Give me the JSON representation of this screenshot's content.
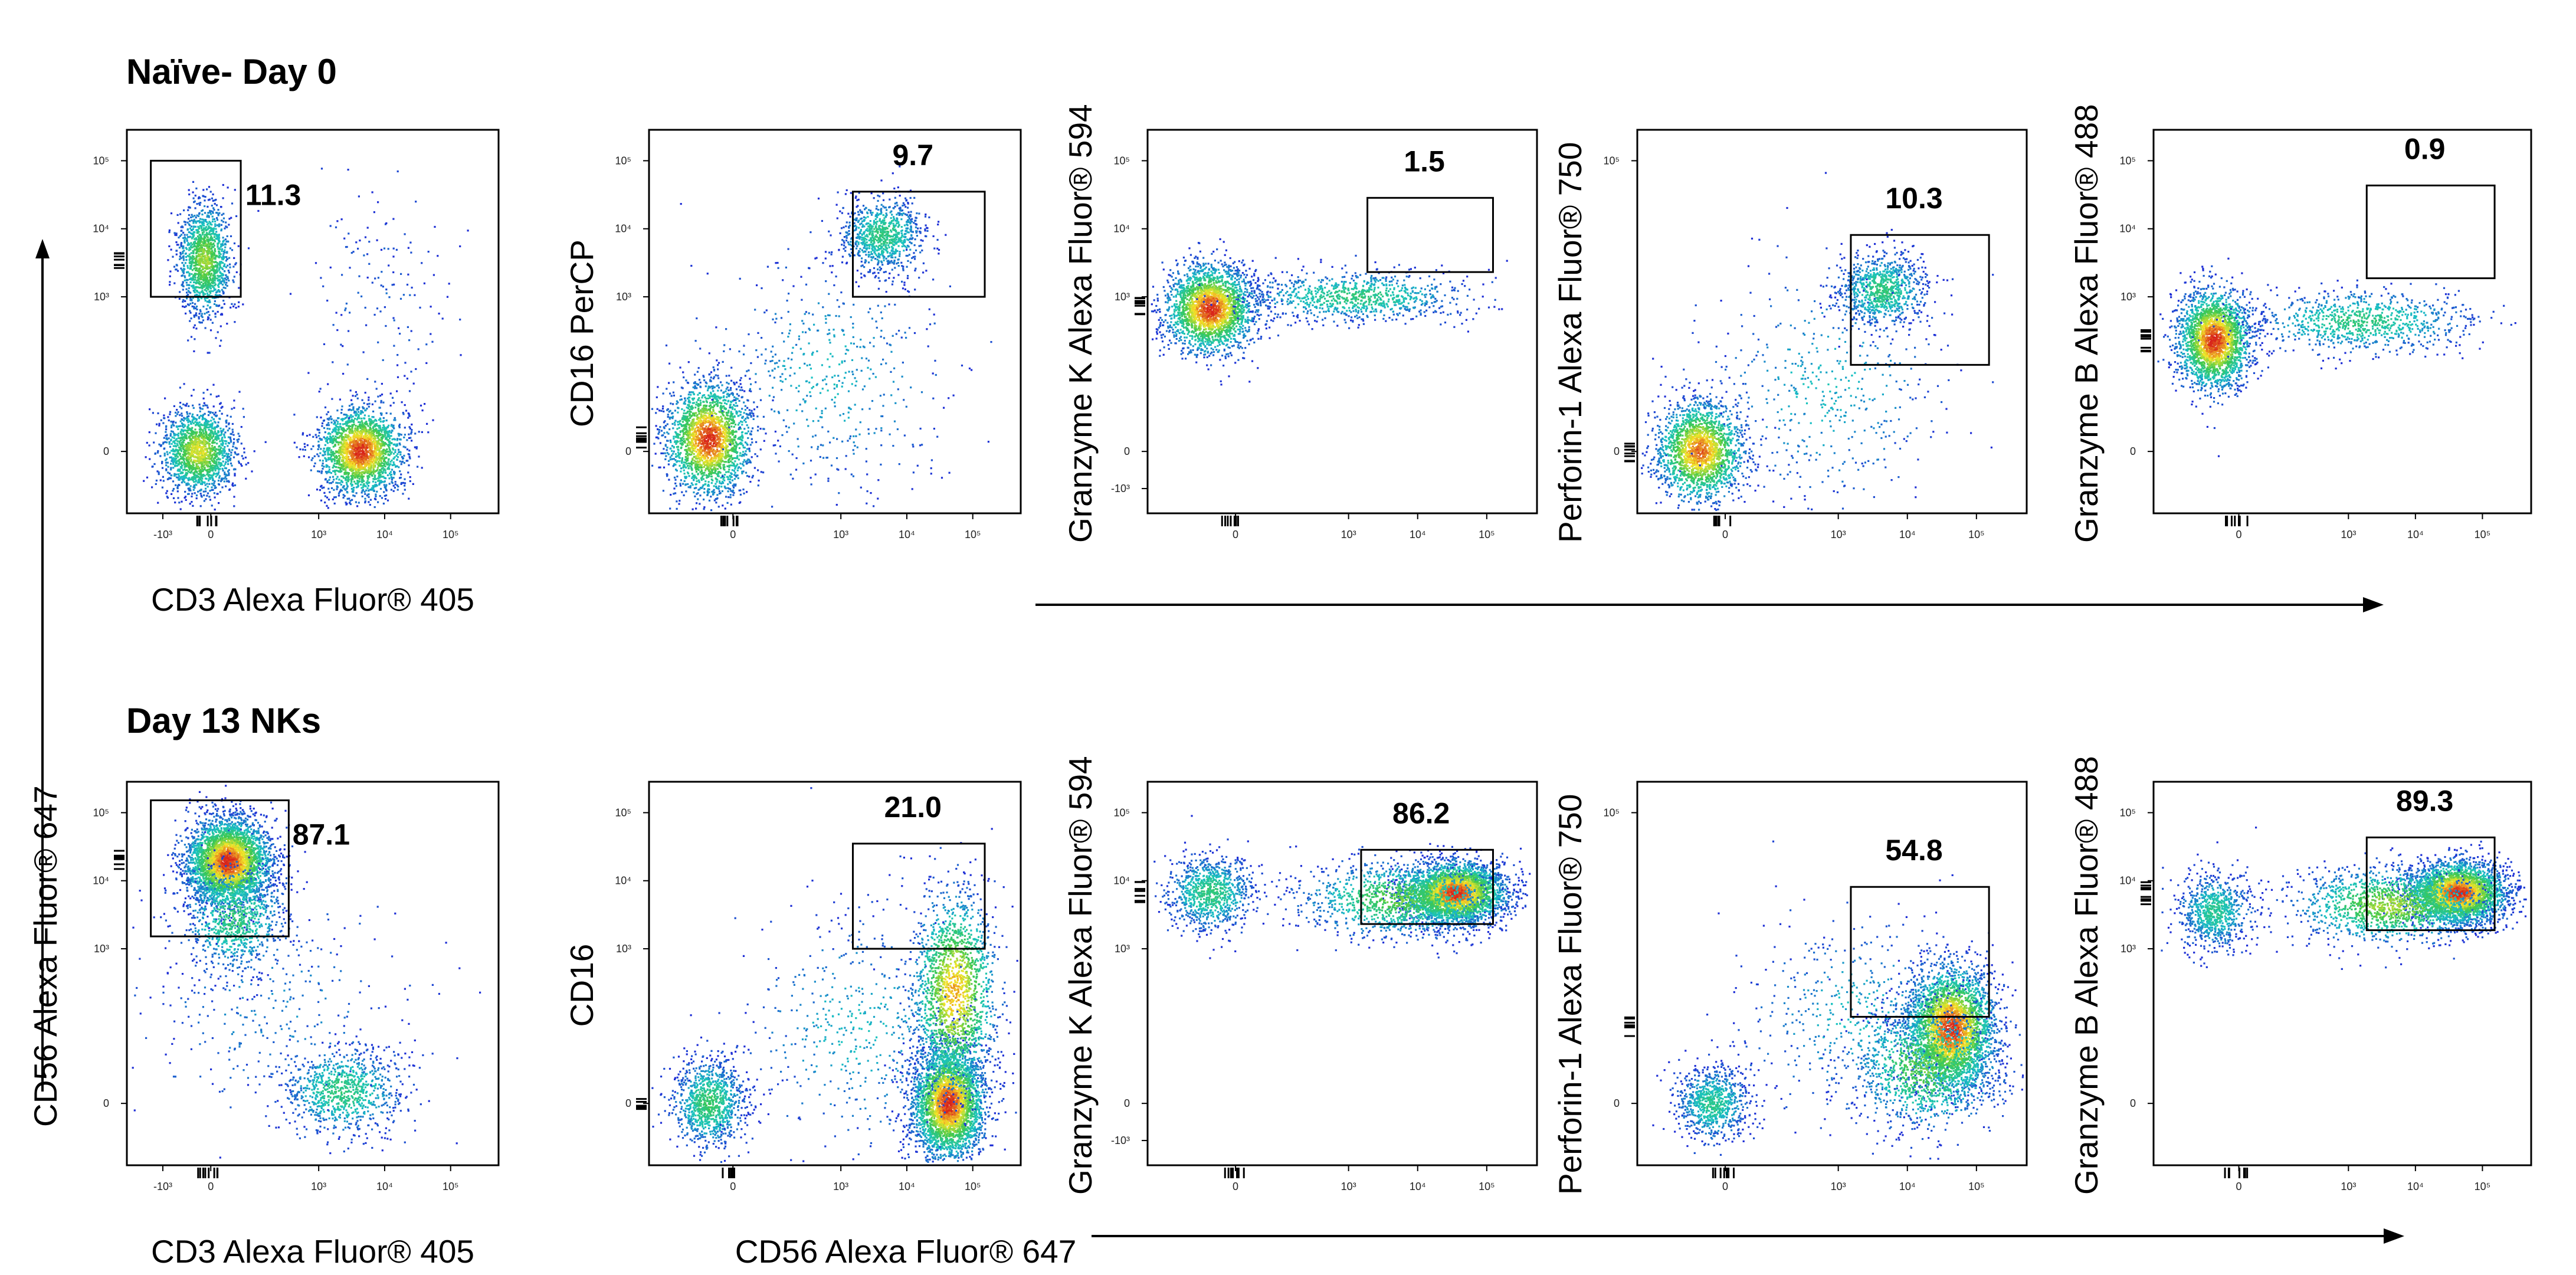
{
  "row_titles": [
    "Naïve- Day 0",
    "Day 13 NKs"
  ],
  "shared_y_label": "CD56 Alexa Fluor® 647",
  "chart_data": [
    {
      "type": "scatter",
      "row": 0,
      "col": 0,
      "xlabel": "CD3 Alexa Fluor® 405",
      "ylabel": "",
      "gate_percent": "11.3",
      "x_ticks": [
        "-10³",
        "0",
        "10³",
        "10⁴",
        "10⁵"
      ],
      "y_ticks": [
        "0",
        "10³",
        "10⁴",
        "10⁵"
      ],
      "ylog": "y-std",
      "gate": {
        "x": [
          -0.6,
          0.9
        ],
        "y": [
          2.5,
          4.7
        ]
      },
      "clusters": [
        {
          "x": 0.3,
          "y": 3.1,
          "sx": 0.22,
          "sy": 0.45,
          "n": 1400
        },
        {
          "x": 0.2,
          "y": 0.0,
          "sx": 0.3,
          "sy": 0.35,
          "n": 1600
        },
        {
          "x": 2.9,
          "y": 0.0,
          "sx": 0.35,
          "sy": 0.35,
          "n": 2200
        },
        {
          "x": 3.2,
          "y": 2.5,
          "sx": 0.6,
          "sy": 0.9,
          "n": 150
        }
      ]
    },
    {
      "type": "scatter",
      "row": 0,
      "col": 1,
      "xlabel": "",
      "ylabel": "CD16 PerCP",
      "gate_percent": "9.7",
      "x_ticks": [
        "0",
        "10³",
        "10⁴",
        "10⁵"
      ],
      "y_ticks": [
        "0",
        "10³",
        "10⁴",
        "10⁵"
      ],
      "ylog": "y-std",
      "gate": {
        "x": [
          2.4,
          4.6
        ],
        "y": [
          2.5,
          4.2
        ]
      },
      "clusters": [
        {
          "x": 0.0,
          "y": 0.2,
          "sx": 0.35,
          "sy": 0.45,
          "n": 2200
        },
        {
          "x": 2.9,
          "y": 3.5,
          "sx": 0.35,
          "sy": 0.3,
          "n": 900
        },
        {
          "x": 2.0,
          "y": 1.2,
          "sx": 1.0,
          "sy": 1.0,
          "n": 500
        }
      ]
    },
    {
      "type": "scatter",
      "row": 0,
      "col": 2,
      "xlabel": "",
      "ylabel": "Granzyme K Alexa Fluor® 594",
      "gate_percent": "1.5",
      "x_ticks": [
        "0",
        "10³",
        "10⁴",
        "10⁵"
      ],
      "y_ticks": [
        "-10³",
        "0",
        "10³",
        "10⁴",
        "10⁵"
      ],
      "ylog": "y-neg",
      "gate": {
        "x": [
          2.5,
          4.5
        ],
        "y": [
          2.9,
          4.1
        ]
      },
      "clusters": [
        {
          "x": 0.0,
          "y": 2.3,
          "sx": 0.35,
          "sy": 0.35,
          "n": 2400
        },
        {
          "x": 2.3,
          "y": 2.5,
          "sx": 0.9,
          "sy": 0.2,
          "n": 900
        }
      ]
    },
    {
      "type": "scatter",
      "row": 0,
      "col": 3,
      "xlabel": "",
      "ylabel": "Perforin-1 Alexa Fluor® 750",
      "gate_percent": "10.3",
      "x_ticks": [
        "0",
        "10³",
        "10⁴",
        "10⁵"
      ],
      "y_ticks": [
        "0",
        "10⁵"
      ],
      "ylog": "y-std",
      "gate": {
        "x": [
          2.4,
          4.6
        ],
        "y": [
          1.4,
          3.5
        ]
      },
      "clusters": [
        {
          "x": 0.0,
          "y": 0.0,
          "sx": 0.35,
          "sy": 0.4,
          "n": 2000
        },
        {
          "x": 2.9,
          "y": 2.6,
          "sx": 0.35,
          "sy": 0.3,
          "n": 900
        },
        {
          "x": 2.0,
          "y": 1.0,
          "sx": 1.0,
          "sy": 1.0,
          "n": 500
        }
      ]
    },
    {
      "type": "scatter",
      "row": 0,
      "col": 4,
      "xlabel": "",
      "ylabel": "Granzyme B Alexa Fluor® 488",
      "gate_percent": "0.9",
      "x_ticks": [
        "0",
        "10³",
        "10⁴",
        "10⁵"
      ],
      "y_ticks": [
        "0",
        "10³",
        "10⁴",
        "10⁵"
      ],
      "ylog": "y-std",
      "gate": {
        "x": [
          2.5,
          4.6
        ],
        "y": [
          2.8,
          4.3
        ]
      },
      "clusters": [
        {
          "x": 0.0,
          "y": 1.8,
          "sx": 0.3,
          "sy": 0.4,
          "n": 2400
        },
        {
          "x": 2.4,
          "y": 2.1,
          "sx": 0.9,
          "sy": 0.25,
          "n": 900
        }
      ]
    },
    {
      "type": "scatter",
      "row": 1,
      "col": 0,
      "xlabel": "CD3 Alexa Fluor® 405",
      "ylabel": "",
      "gate_percent": "87.1",
      "x_ticks": [
        "-10³",
        "0",
        "10³",
        "10⁴",
        "10⁵"
      ],
      "y_ticks": [
        "0",
        "10³",
        "10⁴",
        "10⁵"
      ],
      "ylog": "y-std",
      "gate": {
        "x": [
          -0.6,
          1.7
        ],
        "y": [
          2.7,
          4.9
        ]
      },
      "clusters": [
        {
          "x": 0.7,
          "y": 3.9,
          "sx": 0.35,
          "sy": 0.35,
          "n": 3500
        },
        {
          "x": 0.8,
          "y": 3.0,
          "sx": 0.45,
          "sy": 0.45,
          "n": 900
        },
        {
          "x": 2.6,
          "y": 0.2,
          "sx": 0.5,
          "sy": 0.35,
          "n": 900
        },
        {
          "x": 1.5,
          "y": 1.5,
          "sx": 1.2,
          "sy": 1.0,
          "n": 300
        }
      ]
    },
    {
      "type": "scatter",
      "row": 1,
      "col": 1,
      "xlabel": "CD56 Alexa Fluor® 647",
      "ylabel": "CD16",
      "gate_percent": "21.0",
      "x_ticks": [
        "0",
        "10³",
        "10⁴",
        "10⁵"
      ],
      "y_ticks": [
        "0",
        "10³",
        "10⁴",
        "10⁵"
      ],
      "ylog": "y-std",
      "gate": {
        "x": [
          2.4,
          4.6
        ],
        "y": [
          2.5,
          4.2
        ]
      },
      "clusters": [
        {
          "x": 4.0,
          "y": 0.0,
          "sx": 0.3,
          "sy": 0.45,
          "n": 3200
        },
        {
          "x": 4.1,
          "y": 1.8,
          "sx": 0.35,
          "sy": 0.8,
          "n": 1800
        },
        {
          "x": 0.0,
          "y": 0.0,
          "sx": 0.3,
          "sy": 0.35,
          "n": 1000
        },
        {
          "x": 2.5,
          "y": 1.2,
          "sx": 1.0,
          "sy": 1.0,
          "n": 500
        }
      ]
    },
    {
      "type": "scatter",
      "row": 1,
      "col": 2,
      "xlabel": "",
      "ylabel": "Granzyme K Alexa Fluor® 594",
      "gate_percent": "86.2",
      "x_ticks": [
        "0",
        "10³",
        "10⁴",
        "10⁵"
      ],
      "y_ticks": [
        "-10³",
        "0",
        "10³",
        "10⁴",
        "10⁵"
      ],
      "ylog": "y-neg",
      "gate": {
        "x": [
          2.4,
          4.5
        ],
        "y": [
          2.9,
          4.1
        ]
      },
      "clusters": [
        {
          "x": 3.9,
          "y": 3.4,
          "sx": 0.4,
          "sy": 0.25,
          "n": 3200
        },
        {
          "x": 3.0,
          "y": 3.3,
          "sx": 0.8,
          "sy": 0.3,
          "n": 1200
        },
        {
          "x": 0.0,
          "y": 3.4,
          "sx": 0.35,
          "sy": 0.3,
          "n": 900
        }
      ]
    },
    {
      "type": "scatter",
      "row": 1,
      "col": 3,
      "xlabel": "",
      "ylabel": "Perforin-1 Alexa Fluor® 750",
      "gate_percent": "54.8",
      "x_ticks": [
        "0",
        "10³",
        "10⁴",
        "10⁵"
      ],
      "y_ticks": [
        "0",
        "10⁵"
      ],
      "ylog": "y-std",
      "gate": {
        "x": [
          2.4,
          4.6
        ],
        "y": [
          1.4,
          3.5
        ]
      },
      "clusters": [
        {
          "x": 4.0,
          "y": 1.2,
          "sx": 0.35,
          "sy": 0.5,
          "n": 3200
        },
        {
          "x": 3.6,
          "y": 0.6,
          "sx": 0.6,
          "sy": 0.5,
          "n": 1200
        },
        {
          "x": 0.2,
          "y": 0.0,
          "sx": 0.3,
          "sy": 0.3,
          "n": 800
        },
        {
          "x": 2.5,
          "y": 1.4,
          "sx": 1.0,
          "sy": 0.8,
          "n": 500
        }
      ]
    },
    {
      "type": "scatter",
      "row": 1,
      "col": 4,
      "xlabel": "",
      "ylabel": "Granzyme B Alexa Fluor® 488",
      "gate_percent": "89.3",
      "x_ticks": [
        "0",
        "10³",
        "10⁴",
        "10⁵"
      ],
      "y_ticks": [
        "0",
        "10³",
        "10⁴",
        "10⁵"
      ],
      "ylog": "y-std",
      "gate": {
        "x": [
          2.5,
          4.6
        ],
        "y": [
          2.8,
          4.3
        ]
      },
      "clusters": [
        {
          "x": 4.0,
          "y": 3.4,
          "sx": 0.4,
          "sy": 0.25,
          "n": 3000
        },
        {
          "x": 2.9,
          "y": 3.2,
          "sx": 0.8,
          "sy": 0.3,
          "n": 1400
        },
        {
          "x": 0.0,
          "y": 3.1,
          "sx": 0.3,
          "sy": 0.3,
          "n": 800
        }
      ]
    }
  ],
  "colors": {
    "low": "#1f2fd6",
    "mid": "#19c3c3",
    "high": "#d8241b",
    "frame": "#000000",
    "gate": "#000000"
  }
}
